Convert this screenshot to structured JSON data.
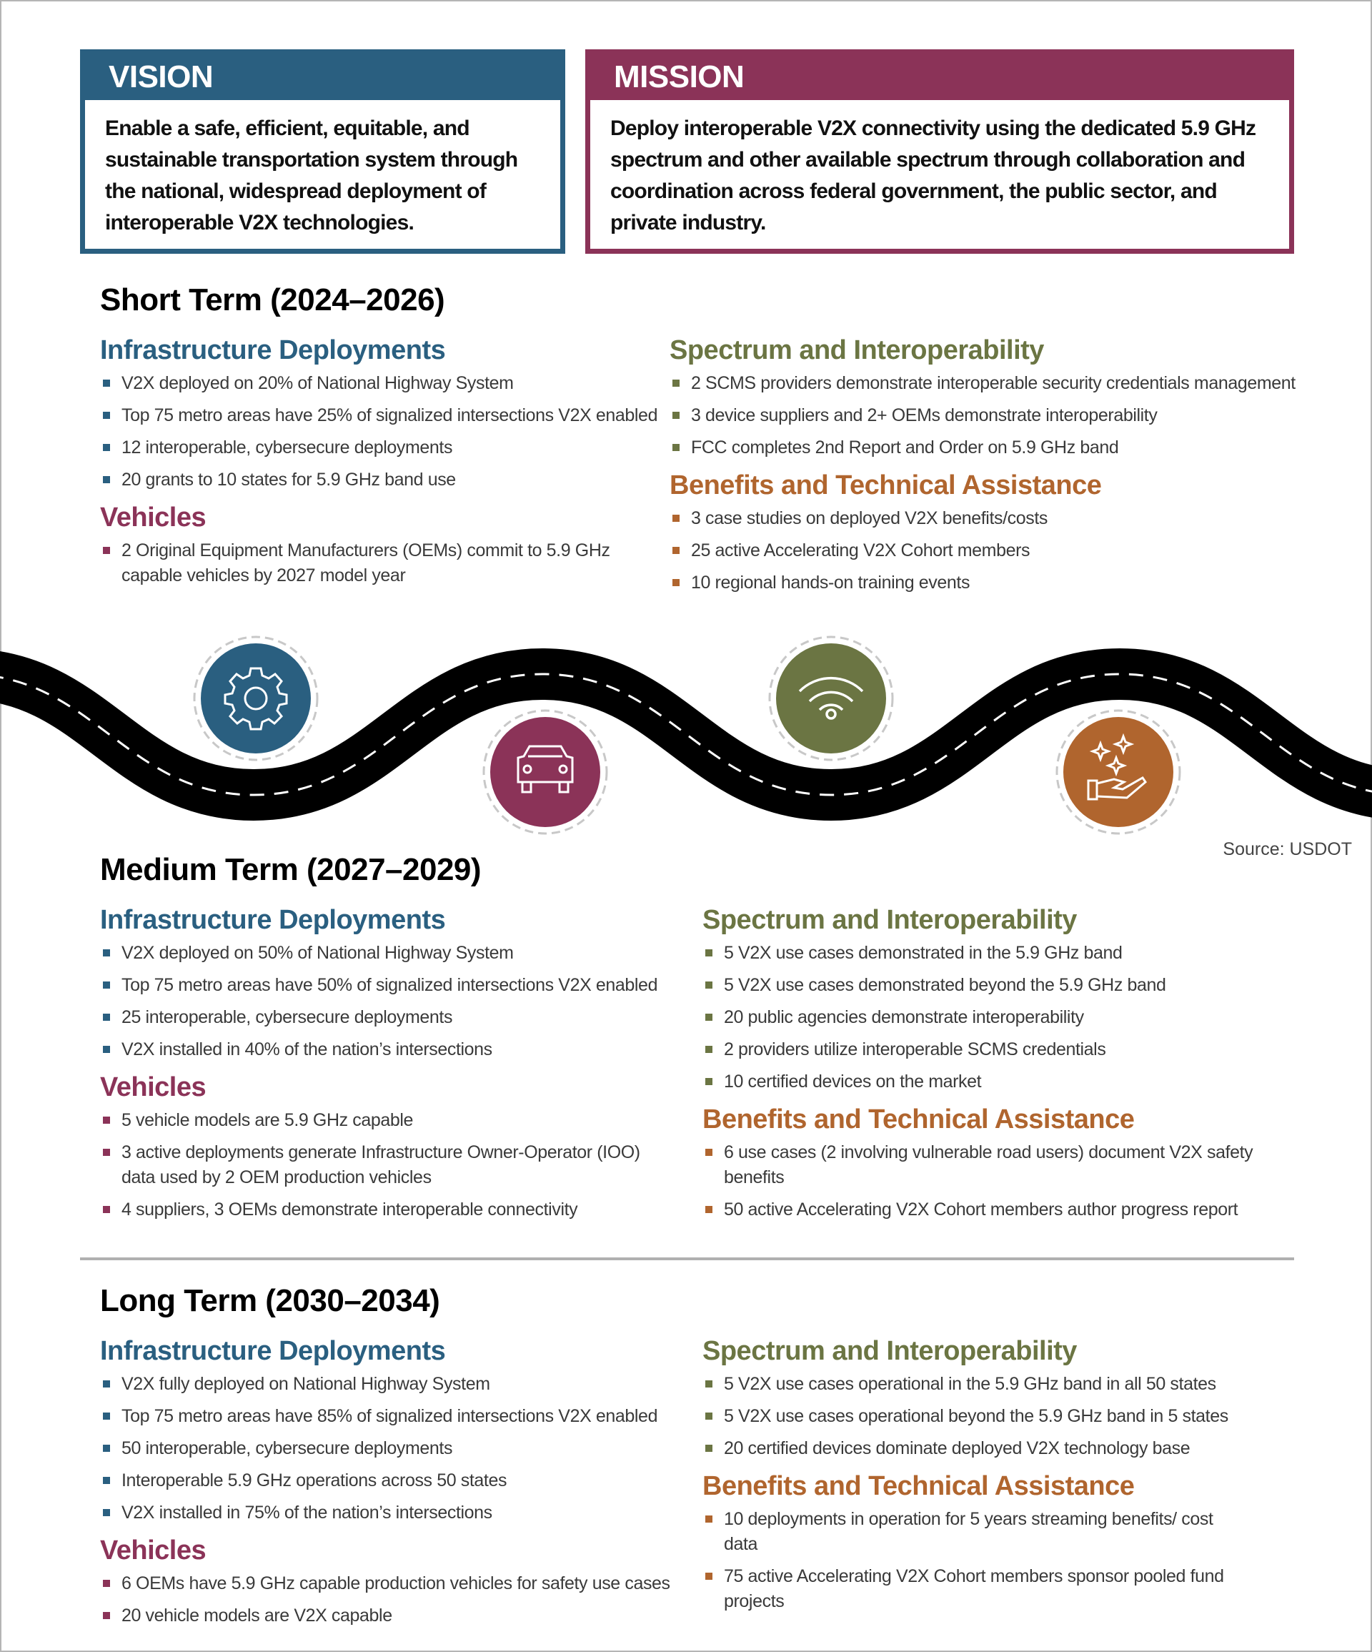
{
  "colors": {
    "infrastructure": "#2a5f80",
    "vehicles": "#8b3358",
    "spectrum": "#6b7543",
    "benefits": "#b0652e"
  },
  "vision": {
    "title": "VISION",
    "text": "Enable a safe, efficient, equitable, and sustainable transportation system through the national, widespread deployment of interoperable V2X technologies."
  },
  "mission": {
    "title": "MISSION",
    "text": "Deploy interoperable V2X connectivity using the dedicated 5.9 GHz spectrum and other available spectrum through collaboration and coordination across federal government, the public sector, and private industry."
  },
  "road_icons": [
    "gear-icon",
    "car-icon",
    "wifi-icon",
    "hand-sparkles-icon"
  ],
  "source": "Source: USDOT",
  "short": {
    "title": "Short Term (2024–2026)",
    "infra": {
      "heading": "Infrastructure Deployments",
      "items": [
        "V2X deployed on 20% of National Highway System",
        "Top 75 metro areas have 25% of signalized intersections V2X enabled",
        "12 interoperable, cybersecure deployments",
        "20 grants to 10 states for 5.9 GHz band use"
      ]
    },
    "vehicles": {
      "heading": "Vehicles",
      "items": [
        "2 Original Equipment Manufacturers (OEMs) commit to 5.9 GHz capable vehicles by 2027 model year"
      ]
    },
    "spectrum": {
      "heading": "Spectrum and Interoperability",
      "items": [
        "2 SCMS providers demonstrate interoperable security credentials management",
        "3 device suppliers and 2+ OEMs demonstrate interoperability",
        "FCC completes 2nd Report and Order on 5.9 GHz band"
      ]
    },
    "benefits": {
      "heading": "Benefits and Technical Assistance",
      "items": [
        "3 case studies on deployed V2X benefits/costs",
        "25 active Accelerating V2X Cohort members",
        "10 regional hands-on training events"
      ]
    }
  },
  "medium": {
    "title": "Medium Term (2027–2029)",
    "infra": {
      "heading": "Infrastructure Deployments",
      "items": [
        "V2X deployed on 50% of National Highway System",
        "Top 75 metro areas have 50% of signalized intersections V2X enabled",
        "25 interoperable, cybersecure deployments",
        "V2X installed in 40% of the nation’s intersections"
      ]
    },
    "vehicles": {
      "heading": "Vehicles",
      "items": [
        "5 vehicle models are 5.9 GHz capable",
        "3 active deployments generate Infrastructure Owner-Operator (IOO) data used by 2 OEM production vehicles",
        "4 suppliers, 3 OEMs demonstrate interoperable connectivity"
      ]
    },
    "spectrum": {
      "heading": "Spectrum and Interoperability",
      "items": [
        "5 V2X use cases demonstrated in the 5.9 GHz band",
        "5 V2X use cases demonstrated beyond the 5.9 GHz band",
        "20 public agencies demonstrate interoperability",
        "2 providers utilize interoperable SCMS credentials",
        "10 certified devices on the market"
      ]
    },
    "benefits": {
      "heading": "Benefits and Technical Assistance",
      "items": [
        "6 use cases (2 involving vulnerable road users) document V2X safety benefits",
        "50 active Accelerating V2X Cohort members author progress report"
      ]
    }
  },
  "long": {
    "title": "Long Term (2030–2034)",
    "infra": {
      "heading": "Infrastructure Deployments",
      "items": [
        "V2X fully deployed on National Highway System",
        "Top 75 metro areas have 85% of signalized intersections V2X enabled",
        "50 interoperable, cybersecure deployments",
        "Interoperable 5.9 GHz operations across 50 states",
        "V2X installed in 75% of the nation’s intersections"
      ]
    },
    "vehicles": {
      "heading": "Vehicles",
      "items": [
        "6 OEMs have 5.9 GHz capable production vehicles for safety use cases",
        "20 vehicle models are V2X capable"
      ]
    },
    "spectrum": {
      "heading": "Spectrum and Interoperability",
      "items": [
        "5 V2X use cases operational in the 5.9 GHz band in all 50 states",
        "5 V2X use cases operational beyond the 5.9 GHz band in 5 states",
        "20 certified devices dominate deployed V2X technology base"
      ]
    },
    "benefits": {
      "heading": "Benefits and Technical Assistance",
      "items": [
        "10 deployments in operation for 5 years streaming benefits/ cost data",
        "75 active Accelerating V2X Cohort members sponsor pooled fund projects"
      ]
    }
  }
}
